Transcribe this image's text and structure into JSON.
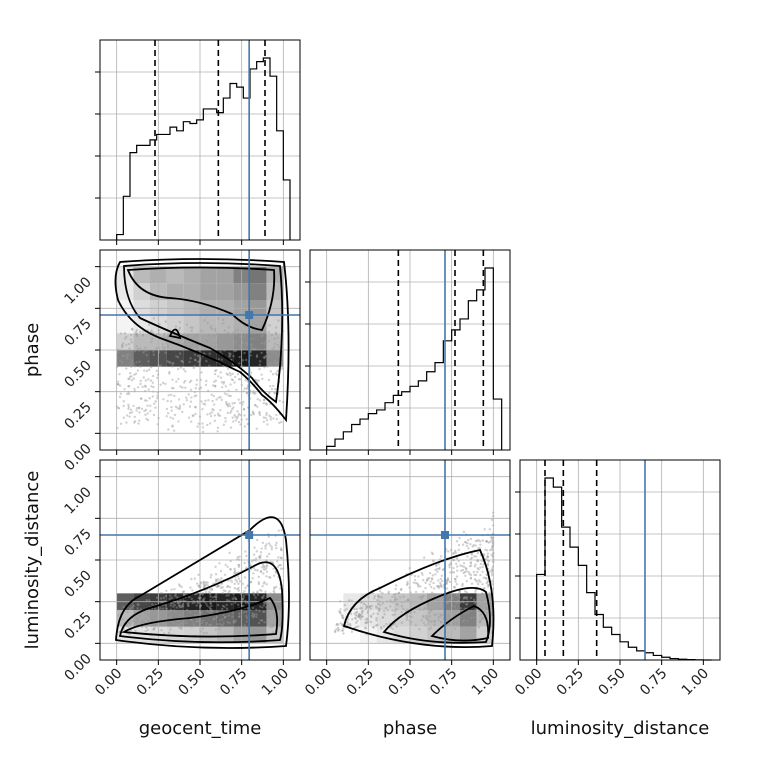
{
  "chart_data": {
    "type": "corner",
    "parameters": [
      "geocent_time",
      "phase",
      "luminosity_distance"
    ],
    "axis_range": [
      -0.1,
      1.1
    ],
    "ticks": [
      0.0,
      0.25,
      0.5,
      0.75,
      1.0
    ],
    "tick_labels": [
      "0.00",
      "0.25",
      "0.50",
      "0.75",
      "1.00"
    ],
    "grid": true,
    "truths": {
      "geocent_time": 0.795,
      "phase": 0.71,
      "luminosity_distance": 0.65
    },
    "truth_color": "#4477aa",
    "quantiles": {
      "geocent_time": [
        0.23,
        0.61,
        0.89
      ],
      "phase": [
        0.43,
        0.77,
        0.94
      ],
      "luminosity_distance": [
        0.05,
        0.16,
        0.36
      ]
    },
    "histograms": {
      "geocent_time": {
        "bin_edges": [
          0.0,
          0.04,
          0.08,
          0.12,
          0.16,
          0.2,
          0.24,
          0.28,
          0.32,
          0.36,
          0.4,
          0.44,
          0.48,
          0.52,
          0.56,
          0.6,
          0.64,
          0.68,
          0.72,
          0.76,
          0.8,
          0.84,
          0.88,
          0.92,
          0.96,
          1.0
        ],
        "counts": [
          0.03,
          0.24,
          0.48,
          0.52,
          0.52,
          0.55,
          0.58,
          0.58,
          0.62,
          0.6,
          0.65,
          0.64,
          0.66,
          0.72,
          0.72,
          0.7,
          0.78,
          0.86,
          0.84,
          0.78,
          0.94,
          0.98,
          1.0,
          0.9,
          0.6,
          0.33
        ]
      },
      "phase": {
        "bin_edges": [
          0.0,
          0.05,
          0.1,
          0.15,
          0.2,
          0.25,
          0.3,
          0.35,
          0.4,
          0.45,
          0.5,
          0.55,
          0.6,
          0.65,
          0.7,
          0.75,
          0.8,
          0.85,
          0.9,
          0.95,
          1.0
        ],
        "counts": [
          0.02,
          0.06,
          0.1,
          0.14,
          0.17,
          0.2,
          0.22,
          0.26,
          0.3,
          0.32,
          0.35,
          0.38,
          0.43,
          0.48,
          0.6,
          0.66,
          0.72,
          0.82,
          0.88,
          1.0,
          0.28
        ]
      },
      "luminosity_distance": {
        "bin_edges": [
          0.0,
          0.05,
          0.1,
          0.15,
          0.2,
          0.25,
          0.3,
          0.35,
          0.4,
          0.45,
          0.5,
          0.55,
          0.6,
          0.65,
          0.7,
          0.75,
          0.8,
          0.85,
          0.9,
          0.95,
          1.0
        ],
        "counts": [
          0.47,
          1.0,
          0.95,
          0.73,
          0.62,
          0.52,
          0.37,
          0.25,
          0.18,
          0.14,
          0.1,
          0.07,
          0.05,
          0.04,
          0.025,
          0.015,
          0.008,
          0.004,
          0.002,
          0.001,
          0.0
        ]
      }
    },
    "pairs": [
      {
        "x": "geocent_time",
        "y": "phase",
        "density": [
          [
            0.1,
            0.3,
            0.35,
            0.3,
            0.35,
            0.4,
            0.4,
            0.55,
            0.6,
            0.35
          ],
          [
            0.1,
            0.2,
            0.3,
            0.35,
            0.35,
            0.4,
            0.4,
            0.45,
            0.55,
            0.3
          ],
          [
            0.05,
            0.15,
            0.2,
            0.25,
            0.3,
            0.35,
            0.35,
            0.4,
            0.45,
            0.25
          ],
          [
            0.05,
            0.1,
            0.15,
            0.2,
            0.25,
            0.3,
            0.3,
            0.35,
            0.4,
            0.2
          ],
          [
            0.2,
            0.3,
            0.3,
            0.35,
            0.4,
            0.4,
            0.45,
            0.5,
            0.55,
            0.3
          ],
          [
            0.55,
            0.7,
            0.75,
            0.8,
            0.85,
            0.9,
            0.95,
            1.0,
            0.95,
            0.5
          ]
        ]
      },
      {
        "x": "geocent_time",
        "y": "luminosity_distance",
        "density": [
          [
            0.1,
            0.12,
            0.15,
            0.18,
            0.2,
            0.25,
            0.3,
            0.4,
            0.45,
            0.25
          ],
          [
            0.3,
            0.4,
            0.45,
            0.5,
            0.55,
            0.6,
            0.65,
            0.7,
            0.75,
            0.4
          ],
          [
            0.7,
            0.8,
            0.85,
            0.9,
            0.95,
            1.0,
            0.95,
            1.0,
            0.95,
            0.5
          ]
        ]
      },
      {
        "x": "phase",
        "y": "luminosity_distance",
        "density": [
          [
            0.0,
            0.0,
            0.05,
            0.1,
            0.15,
            0.2,
            0.25,
            0.3,
            0.4,
            0.2
          ],
          [
            0.0,
            0.05,
            0.1,
            0.15,
            0.2,
            0.25,
            0.3,
            0.4,
            0.55,
            0.3
          ],
          [
            0.0,
            0.1,
            0.15,
            0.2,
            0.25,
            0.3,
            0.4,
            0.55,
            0.85,
            0.4
          ]
        ]
      }
    ]
  }
}
